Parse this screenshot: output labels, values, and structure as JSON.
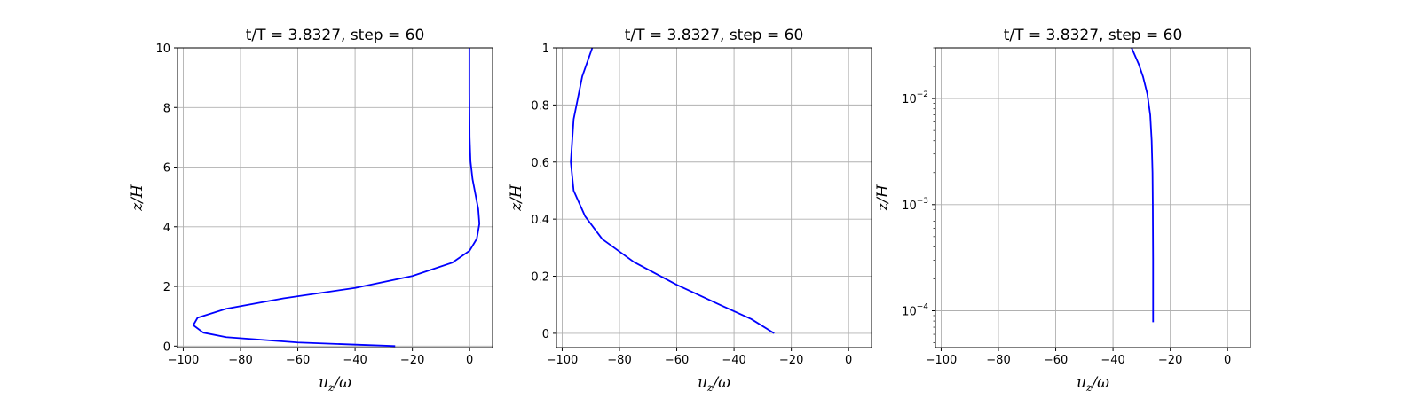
{
  "chart_data": [
    {
      "type": "line",
      "title": "t/T = 3.8327, step = 60",
      "xlabel": "u_z/ω",
      "ylabel": "z/H",
      "xlim": [
        -102,
        8
      ],
      "ylim": [
        -0.05,
        10
      ],
      "yscale": "linear",
      "grid": true,
      "xticks": [
        -100,
        -80,
        -60,
        -40,
        -20,
        0
      ],
      "yticks": [
        0,
        2,
        4,
        6,
        8,
        10
      ],
      "series": [
        {
          "color": "#0000ff",
          "x": [
            -26,
            -60,
            -85,
            -93,
            -96.5,
            -95,
            -85,
            -65,
            -40,
            -20,
            -6,
            0,
            2.5,
            3.4,
            3.0,
            2.0,
            1.0,
            0.3,
            0,
            -0.1,
            -0.1
          ],
          "y": [
            0,
            0.12,
            0.3,
            0.45,
            0.7,
            0.95,
            1.25,
            1.6,
            1.95,
            2.35,
            2.8,
            3.2,
            3.6,
            4.1,
            4.6,
            5.1,
            5.6,
            6.2,
            7.0,
            8.5,
            10
          ]
        }
      ]
    },
    {
      "type": "line",
      "title": "t/T = 3.8327, step = 60",
      "xlabel": "u_z/ω",
      "ylabel": "z/H",
      "xlim": [
        -102,
        8
      ],
      "ylim": [
        -0.05,
        1.0
      ],
      "yscale": "linear",
      "grid": true,
      "xticks": [
        -100,
        -80,
        -60,
        -40,
        -20,
        0
      ],
      "yticks": [
        0.0,
        0.2,
        0.4,
        0.6,
        0.8,
        1.0
      ],
      "series": [
        {
          "color": "#0000ff",
          "x": [
            -26,
            -34,
            -45,
            -60,
            -75,
            -86,
            -92,
            -96,
            -97,
            -96,
            -93,
            -89.5
          ],
          "y": [
            0,
            0.05,
            0.1,
            0.17,
            0.25,
            0.33,
            0.41,
            0.5,
            0.6,
            0.75,
            0.9,
            1.0
          ]
        }
      ]
    },
    {
      "type": "line",
      "title": "t/T = 3.8327, step = 60",
      "xlabel": "u_z/ω",
      "ylabel": "z/H",
      "xlim": [
        -102,
        8
      ],
      "ylim": [
        4.5e-05,
        0.03
      ],
      "yscale": "log",
      "grid": true,
      "xticks": [
        -100,
        -80,
        -60,
        -40,
        -20,
        0
      ],
      "yticks": [
        0.0001,
        0.001,
        0.01
      ],
      "series": [
        {
          "color": "#0000ff",
          "x": [
            -26,
            -26,
            -26.1,
            -26.2,
            -26.5,
            -27,
            -28,
            -29.5,
            -31,
            -33.5
          ],
          "y": [
            7.8e-05,
            0.0003,
            0.001,
            0.002,
            0.004,
            0.007,
            0.011,
            0.016,
            0.021,
            0.03
          ]
        }
      ]
    }
  ]
}
